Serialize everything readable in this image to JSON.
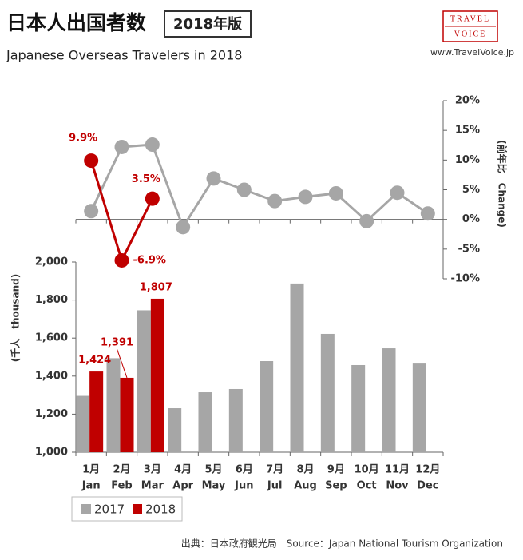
{
  "chart_data": {
    "type": "bar",
    "title": "日本人出国者数",
    "badge": "2018年版",
    "subtitle": "Japanese Overseas Travelers in 2018",
    "logo": [
      "TRAVEL",
      "VOICE"
    ],
    "site": "www.TravelVoice.jp",
    "source": "出典：日本政府観光局　Source：Japan National Tourism Organization",
    "y_label": "(千人　thousand)",
    "y2_label": "(前年比　Change)",
    "categories": [
      "1月",
      "2月",
      "3月",
      "4月",
      "5月",
      "6月",
      "7月",
      "8月",
      "9月",
      "10月",
      "11月",
      "12月"
    ],
    "categories_en": [
      "Jan",
      "Feb",
      "Mar",
      "Apr",
      "May",
      "Jun",
      "Jul",
      "Aug",
      "Sep",
      "Oct",
      "Nov",
      "Dec"
    ],
    "ylim": [
      1000,
      2000
    ],
    "yticks": [
      {
        "value": 1000,
        "label": "1,000"
      },
      {
        "value": 1200,
        "label": "1,200"
      },
      {
        "value": 1400,
        "label": "1,400"
      },
      {
        "value": 1600,
        "label": "1,600"
      },
      {
        "value": 1800,
        "label": "1,800"
      },
      {
        "value": 2000,
        "label": "2,000"
      }
    ],
    "y2lim": [
      -10,
      20
    ],
    "y2ticks": [
      {
        "value": -10,
        "label": "-10%"
      },
      {
        "value": -5,
        "label": "-5%"
      },
      {
        "value": 0,
        "label": "0%"
      },
      {
        "value": 5,
        "label": "5%"
      },
      {
        "value": 10,
        "label": "10%"
      },
      {
        "value": 15,
        "label": "15%"
      },
      {
        "value": 20,
        "label": "20%"
      }
    ],
    "series": [
      {
        "name": "2017",
        "color": "#a6a6a6",
        "values": [
          1296,
          1494,
          1746,
          1231,
          1315,
          1332,
          1479,
          1887,
          1622,
          1458,
          1546,
          1466
        ]
      },
      {
        "name": "2018",
        "color": "#c00000",
        "values": [
          1424,
          1391,
          1807,
          null,
          null,
          null,
          null,
          null,
          null,
          null,
          null,
          null
        ],
        "value_labels": [
          "1,424",
          "1,391",
          "1,807",
          null,
          null,
          null,
          null,
          null,
          null,
          null,
          null,
          null
        ]
      }
    ],
    "line_series": [
      {
        "color": "#a6a6a6",
        "axis": "y2",
        "values": [
          1.4,
          12.2,
          12.6,
          -1.3,
          6.9,
          5.0,
          3.1,
          3.8,
          4.4,
          -0.3,
          4.5,
          1.0
        ]
      },
      {
        "color": "#c00000",
        "axis": "y2",
        "values": [
          9.9,
          -6.9,
          3.5,
          null,
          null,
          null,
          null,
          null,
          null,
          null,
          null,
          null
        ],
        "value_labels": [
          "9.9%",
          "-6.9%",
          "3.5%",
          null,
          null,
          null,
          null,
          null,
          null,
          null,
          null,
          null
        ]
      }
    ]
  }
}
